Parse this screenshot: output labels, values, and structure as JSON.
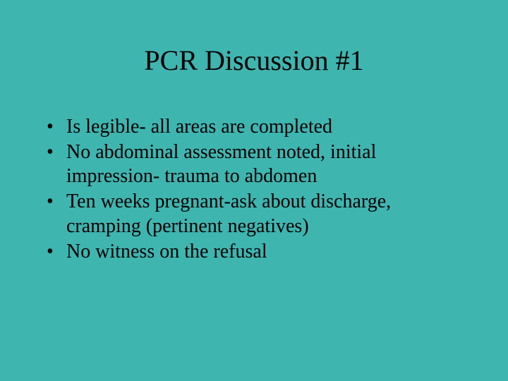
{
  "slide": {
    "background_color": "#3fb5b0",
    "text_color": "#000000",
    "font_family": "Times New Roman",
    "title": {
      "text": "PCR Discussion #1",
      "fontsize": 40,
      "align": "center"
    },
    "bullets": {
      "fontsize": 28,
      "items": [
        "Is legible- all areas are completed",
        "No abdominal assessment noted, initial impression- trauma to abdomen",
        "Ten weeks pregnant-ask about discharge, cramping (pertinent negatives)",
        "No witness on the refusal"
      ]
    }
  }
}
